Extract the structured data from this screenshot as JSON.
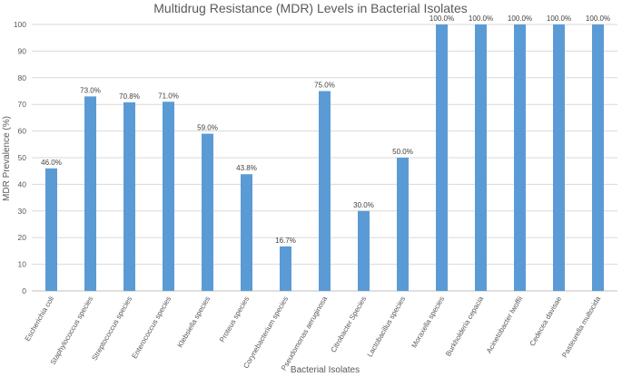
{
  "chart_data": {
    "type": "bar",
    "title": "Multidrug Resistance (MDR) Levels in Bacterial Isolates",
    "xlabel": "Bacterial Isolates",
    "ylabel": "MDR Prevalence (%)",
    "ylim": [
      0,
      100
    ],
    "yticks": [
      0,
      10,
      20,
      30,
      40,
      50,
      60,
      70,
      80,
      90,
      100
    ],
    "grid": true,
    "legend": "none",
    "categories": [
      "Escherichia coli",
      "Staphylococcus species",
      "Streptococcus species",
      "Enterococcus species",
      "Klebsiella species",
      "Proteus species",
      "Corynebacterium species",
      "Pseudomonas aeruginosa",
      "Citrobacter Species",
      "Lactobacillus species",
      "Moraxella species",
      "Burkholderia cepacia",
      "Acinetobacter lwoffii",
      "Cedecea davisae",
      "Pasteurella multocida"
    ],
    "values": [
      46.0,
      73.0,
      70.8,
      71.0,
      59.0,
      43.8,
      16.7,
      75.0,
      30.0,
      50.0,
      100.0,
      100.0,
      100.0,
      100.0,
      100.0
    ],
    "data_labels": [
      "46.0%",
      "73.0%",
      "70.8%",
      "71.0%",
      "59.0%",
      "43.8%",
      "16.7%",
      "75.0%",
      "30.0%",
      "50.0%",
      "100.0%",
      "100.0%",
      "100.0%",
      "100.0%",
      "100.0%"
    ],
    "bar_color": "#5b9bd5"
  }
}
